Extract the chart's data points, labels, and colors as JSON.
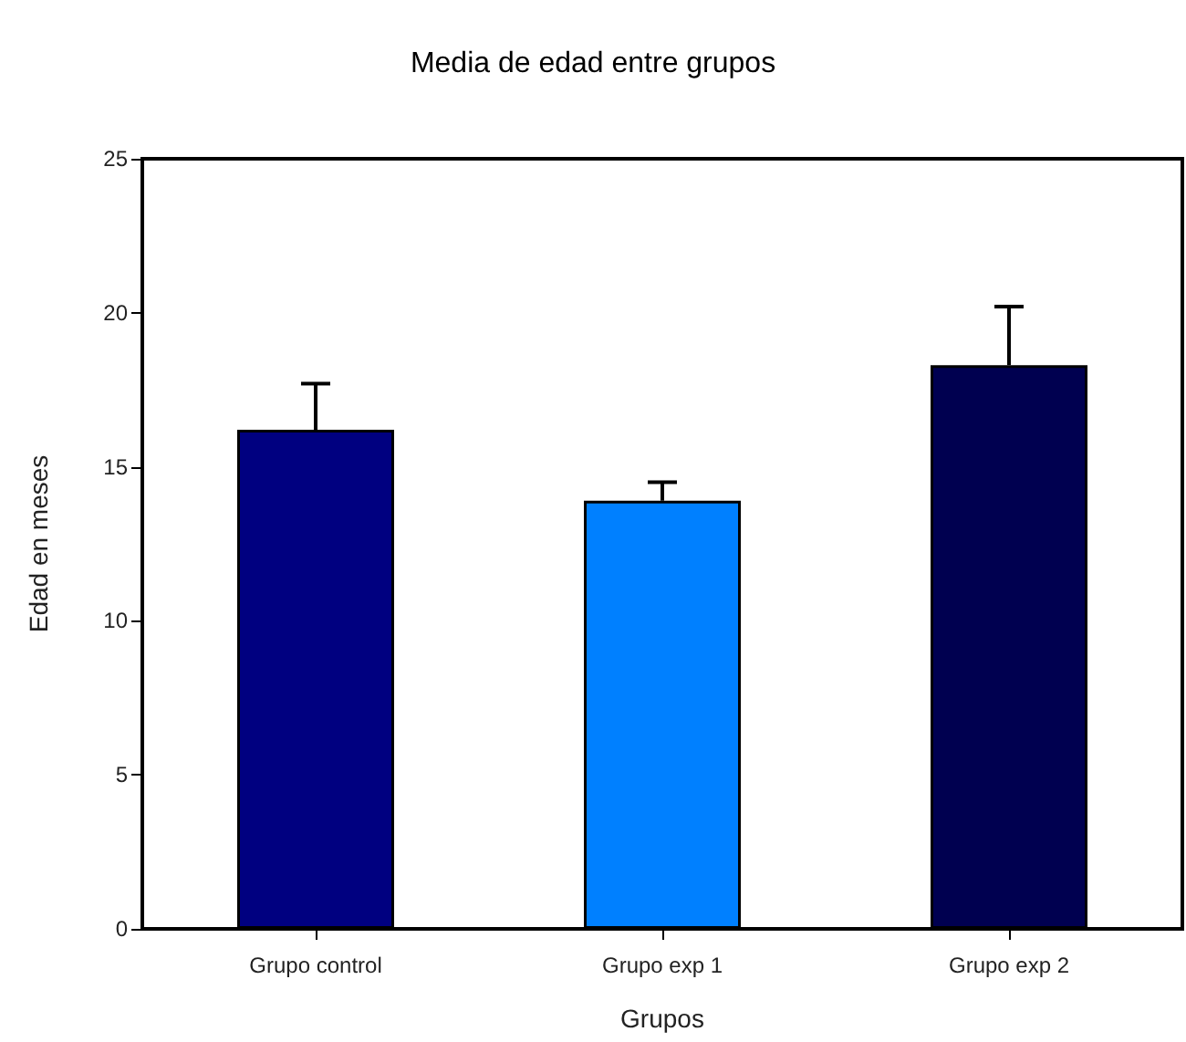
{
  "chart_data": {
    "type": "bar",
    "title": "Media de edad entre grupos",
    "xlabel": "Grupos",
    "ylabel": "Edad en meses",
    "categories": [
      "Grupo control",
      "Grupo exp 1",
      "Grupo exp 2"
    ],
    "values": [
      16.2,
      13.9,
      18.3
    ],
    "colors": [
      "#000080",
      "#0080ff",
      "#000050"
    ],
    "errors": [
      [
        16.2,
        17.7
      ],
      [
        13.9,
        14.5
      ],
      [
        18.3,
        20.2
      ]
    ],
    "ylim": [
      0,
      25
    ],
    "yticks": [
      0,
      5,
      10,
      15,
      20,
      25
    ],
    "grid": false
  }
}
